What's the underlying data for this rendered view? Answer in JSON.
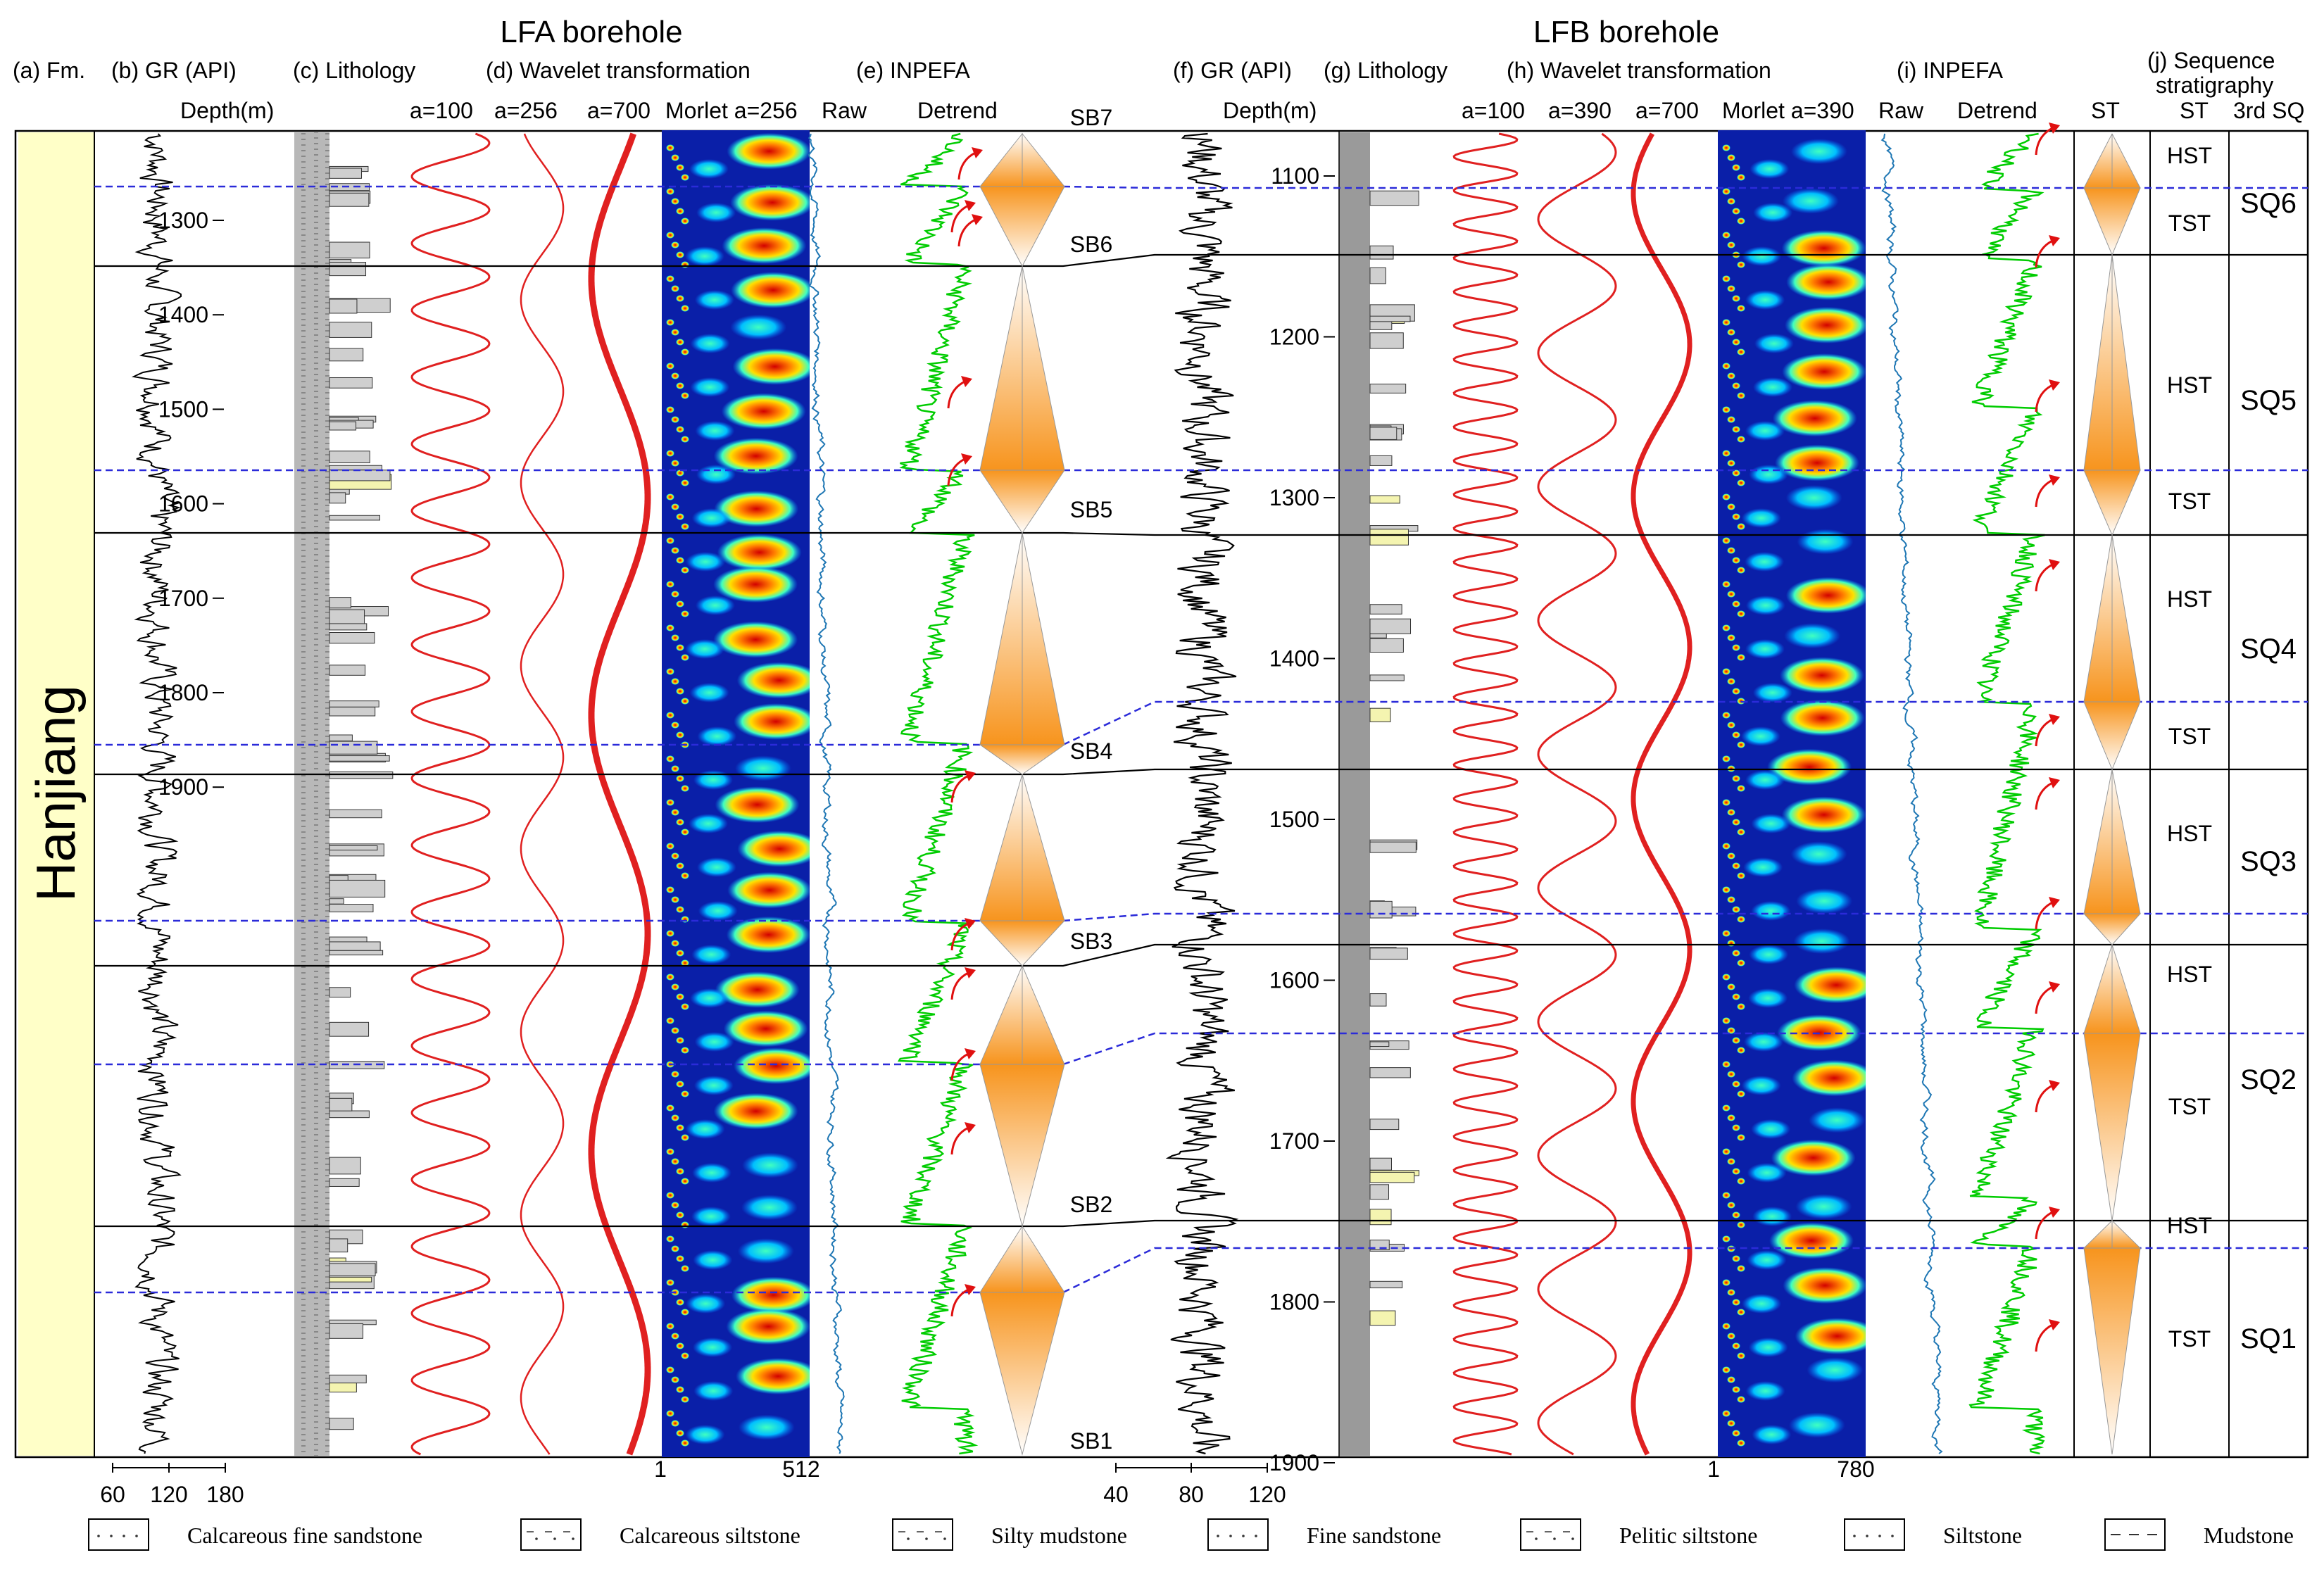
{
  "figure": {
    "lfa_title": "LFA borehole",
    "lfb_title": "LFB borehole",
    "formation": "Hanjiang",
    "colors": {
      "sb_line": "#000000",
      "mfs_line": "#2b2bd9",
      "gr": "#000000",
      "raw": "#1f77b4",
      "detrend": "#00cc00",
      "wavelet": "#e02020",
      "arrow": "#e01010",
      "triangle": "#f7941d",
      "formation_bg": "#ffffc8"
    }
  },
  "headers": {
    "a": "(a) Fm.",
    "b": "(b) GR (API)",
    "c": "(c) Lithology",
    "d": "(d) Wavelet transformation",
    "e": "(e) INPEFA",
    "f": "(f) GR (API)",
    "g": "(g) Lithology",
    "h": "(h) Wavelet transformation",
    "i": "(i) INPEFA",
    "j1": "(j) Sequence",
    "j2": "stratigraphy"
  },
  "subheaders": {
    "depth_lfa": "Depth(m)",
    "depth_lfb": "Depth(m)",
    "lfa_a100": "a=100",
    "lfa_a256": "a=256",
    "lfa_a700": "a=700",
    "lfa_morlet": "Morlet a=256",
    "lfa_raw": "Raw",
    "lfa_detrend": "Detrend",
    "lfb_a100": "a=100",
    "lfb_a390": "a=390",
    "lfb_a700": "a=700",
    "lfb_morlet": "Morlet a=390",
    "lfb_raw": "Raw",
    "lfb_detrend": "Detrend",
    "st1": "ST",
    "st2": "ST",
    "sq": "3rd SQ"
  },
  "lfa_depth_ticks": [
    "1300",
    "1400",
    "1500",
    "1600",
    "1700",
    "1800",
    "1900"
  ],
  "lfb_depth_ticks": [
    "1100",
    "1200",
    "1300",
    "1400",
    "1500",
    "1600",
    "1700",
    "1800",
    "1900"
  ],
  "sequence_boundaries": [
    "SB7",
    "SB6",
    "SB5",
    "SB4",
    "SB3",
    "SB2",
    "SB1"
  ],
  "systems_tracts": [
    "HST",
    "TST",
    "HST",
    "TST",
    "HST",
    "TST",
    "HST",
    "HST",
    "TST",
    "HST",
    "TST"
  ],
  "sequences": [
    "SQ6",
    "SQ5",
    "SQ4",
    "SQ3",
    "SQ2",
    "SQ1"
  ],
  "scales": {
    "lfa_gr": [
      "60",
      "120",
      "180"
    ],
    "lfa_morlet": [
      "1",
      "512"
    ],
    "lfb_gr": [
      "40",
      "80",
      "120"
    ],
    "lfb_morlet": [
      "1",
      "780"
    ]
  },
  "legend": [
    {
      "label": "Calcareous fine sandstone",
      "pattern": "dots"
    },
    {
      "label": "Calcareous siltstone",
      "pattern": "dashdot"
    },
    {
      "label": "Silty mudstone",
      "pattern": "dashdot"
    },
    {
      "label": "Fine sandstone",
      "pattern": "dots"
    },
    {
      "label": "Pelitic siltstone",
      "pattern": "dashdot"
    },
    {
      "label": "Siltstone",
      "pattern": "dots"
    },
    {
      "label": "Mudstone",
      "pattern": "dash"
    }
  ]
}
